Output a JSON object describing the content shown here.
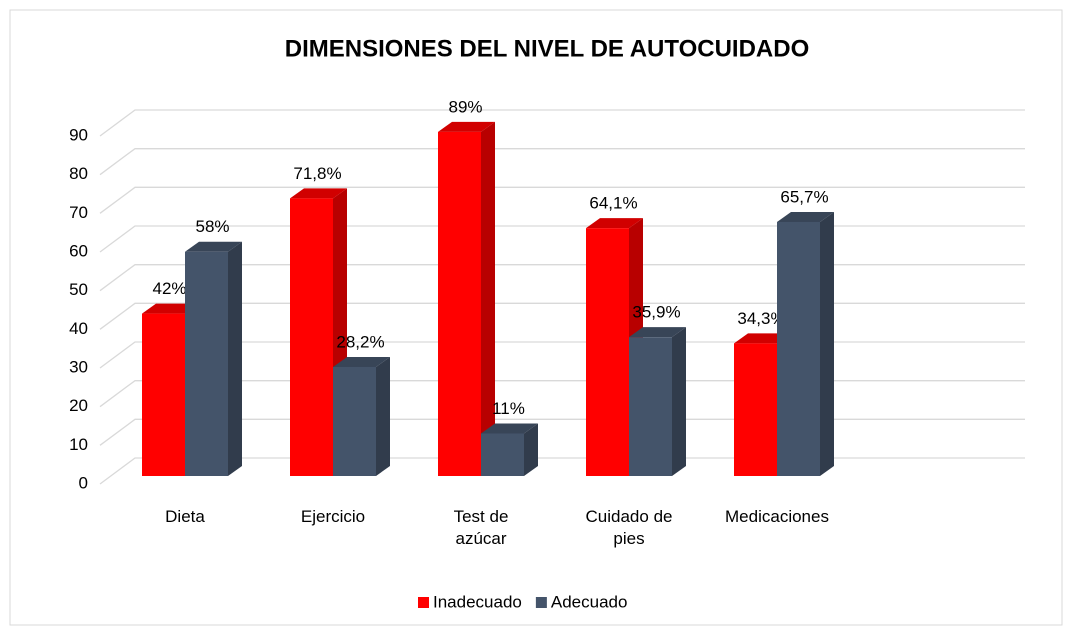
{
  "chart_data": {
    "type": "bar3d",
    "title": "DIMENSIONES DEL NIVEL DE AUTOCUIDADO",
    "categories": [
      "Dieta",
      "Ejercicio",
      "Test de azúcar",
      "Cuidado de pies",
      "Medicaciones"
    ],
    "series": [
      {
        "name": "Inadecuado",
        "color": "#ff0000",
        "values": [
          42,
          71.8,
          89,
          64.1,
          34.3
        ],
        "value_labels": [
          "42%",
          "71,8%",
          "89%",
          "64,1%",
          "34,3%"
        ]
      },
      {
        "name": "Adecuado",
        "color": "#44546a",
        "values": [
          58,
          28.2,
          11,
          35.9,
          65.7
        ],
        "value_labels": [
          "58%",
          "28,2%",
          "11%",
          "35,9%",
          "65,7%"
        ]
      }
    ],
    "ylim": [
      0,
      90
    ],
    "yticks": [
      0,
      10,
      20,
      30,
      40,
      50,
      60,
      70,
      80,
      90
    ],
    "grid": true,
    "legend": "bottom"
  }
}
